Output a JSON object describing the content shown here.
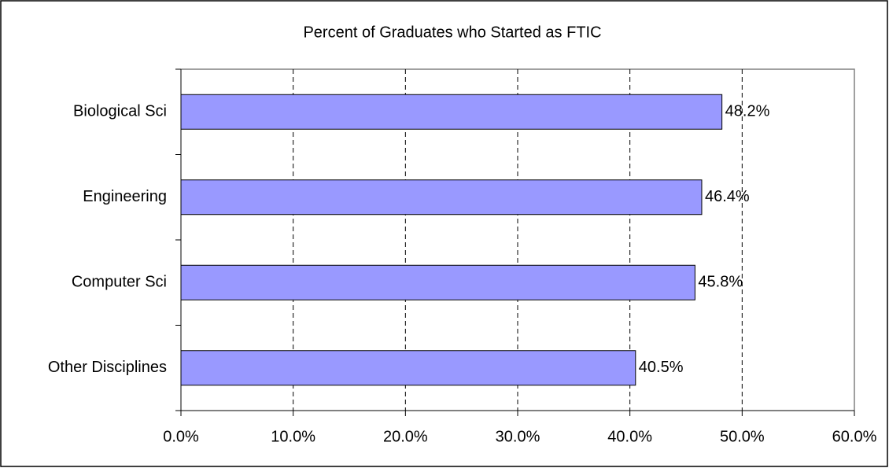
{
  "chart_data": {
    "type": "bar",
    "orientation": "horizontal",
    "title": "Percent of Graduates who Started as FTIC",
    "categories": [
      "Biological Sci",
      "Engineering",
      "Computer Sci",
      "Other Disciplines"
    ],
    "values": [
      48.2,
      46.4,
      45.8,
      40.5
    ],
    "value_labels": [
      "48.2%",
      "46.4%",
      "45.8%",
      "40.5%"
    ],
    "color": "#9999ff",
    "xlim": [
      0,
      60
    ],
    "xticks": [
      {
        "value": 0,
        "label": "0.0%"
      },
      {
        "value": 10,
        "label": "10.0%"
      },
      {
        "value": 20,
        "label": "20.0%"
      },
      {
        "value": 30,
        "label": "30.0%"
      },
      {
        "value": 40,
        "label": "40.0%"
      },
      {
        "value": 50,
        "label": "50.0%"
      },
      {
        "value": 60,
        "label": "60.0%"
      }
    ],
    "grid": true
  }
}
